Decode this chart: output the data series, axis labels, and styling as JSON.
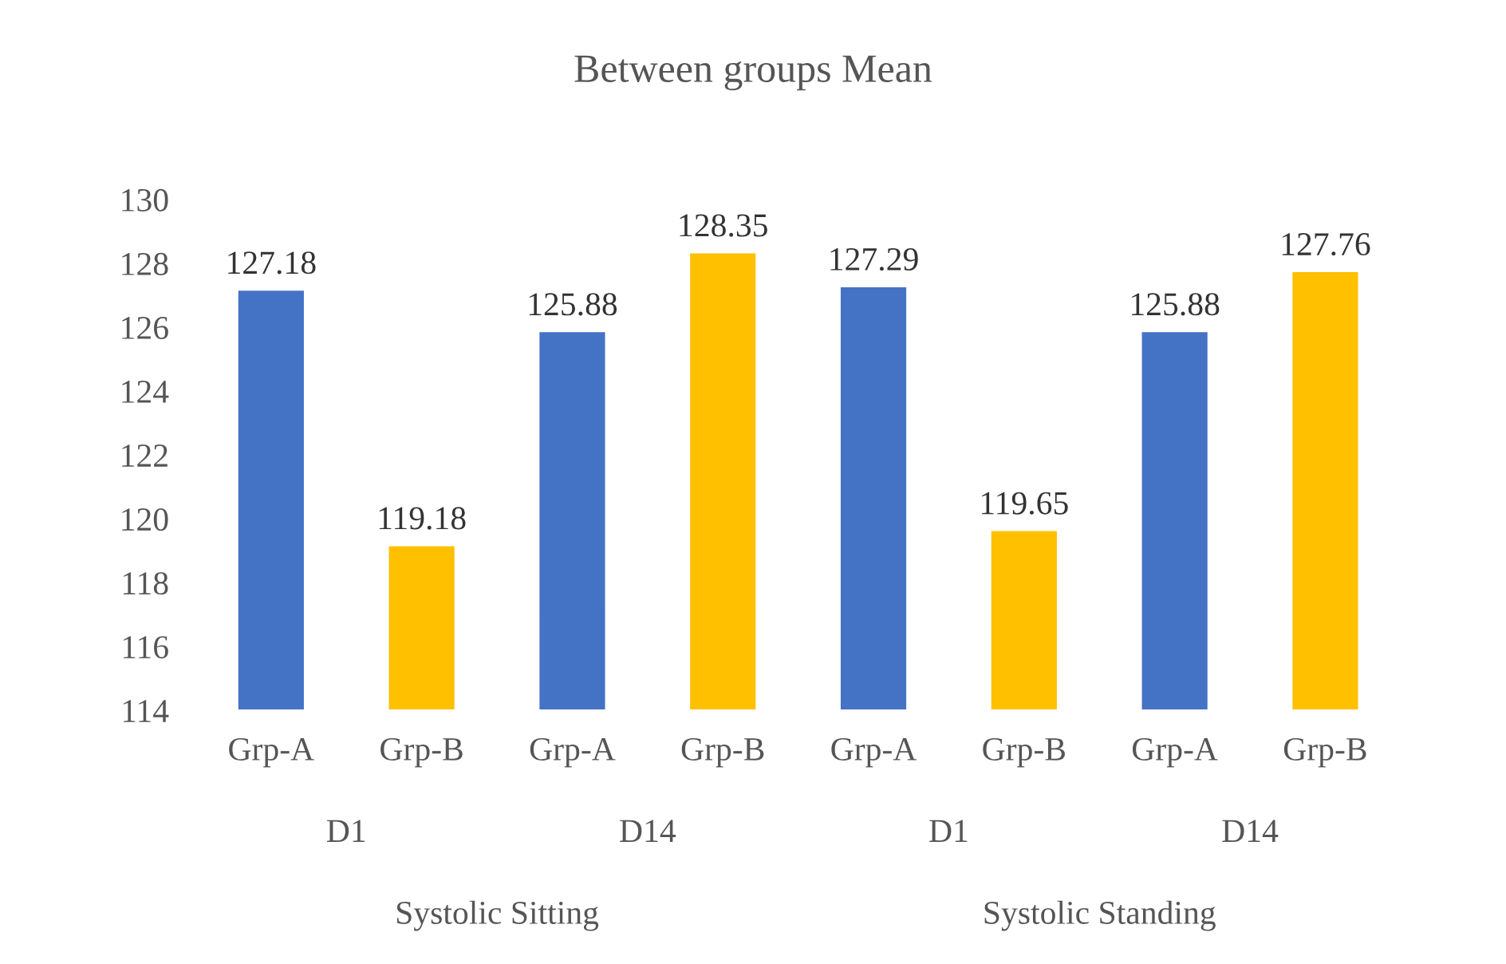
{
  "chart_data": {
    "type": "bar",
    "title": "Between groups Mean",
    "categories": [
      "Grp-A",
      "Grp-B",
      "Grp-A",
      "Grp-B",
      "Grp-A",
      "Grp-B",
      "Grp-A",
      "Grp-B"
    ],
    "values": [
      127.18,
      119.18,
      125.88,
      128.35,
      127.29,
      119.65,
      125.88,
      127.76
    ],
    "colors": [
      "#4472c4",
      "#ffc000",
      "#4472c4",
      "#ffc000",
      "#4472c4",
      "#ffc000",
      "#4472c4",
      "#ffc000"
    ],
    "ylim": [
      114,
      130
    ],
    "yticks": [
      114,
      116,
      118,
      120,
      122,
      124,
      126,
      128,
      130
    ],
    "data_labels": true,
    "grid": false,
    "legend": false,
    "annotations": [
      "D1",
      "D14",
      "D1",
      "D14",
      "Systolic Sitting",
      "Systolic Standing"
    ]
  }
}
